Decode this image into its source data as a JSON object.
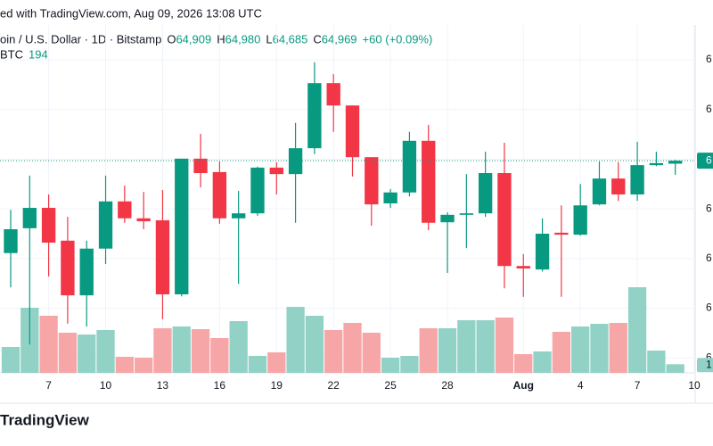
{
  "header": "ed with TradingView.com, Aug 09, 2026 13:08 UTC",
  "symbol_line": "oin / U.S. Dollar · 1D · Bitstamp",
  "ohlc_legend": [
    {
      "label": "O",
      "text": "64,909"
    },
    {
      "label": "H",
      "text": "64,980"
    },
    {
      "label": "L",
      "text": "64,685"
    },
    {
      "label": "C",
      "text": "64,969"
    }
  ],
  "change": "+60 (+0.09%)",
  "volume_legend": {
    "label": "BTC",
    "text": "194"
  },
  "brand": "TradingView",
  "chart_data": {
    "type": "candlestick",
    "categories": [
      null,
      null,
      "7",
      null,
      null,
      "10",
      null,
      null,
      "13",
      null,
      null,
      "16",
      null,
      null,
      "19",
      null,
      null,
      "22",
      null,
      null,
      "25",
      null,
      null,
      "28",
      null,
      null,
      null,
      "Aug",
      null,
      null,
      "4",
      null,
      null,
      "7",
      null,
      null,
      "10"
    ],
    "open": [
      63110,
      63610,
      64020,
      63360,
      62260,
      63200,
      64150,
      63810,
      63770,
      62280,
      65010,
      64740,
      63810,
      63910,
      64830,
      64700,
      65220,
      66530,
      66080,
      65040,
      64110,
      64330,
      65370,
      63730,
      63880,
      63910,
      64720,
      62850,
      62780,
      63520,
      63480,
      64090,
      64610,
      64290,
      64880,
      64909,
      null
    ],
    "high": [
      63980,
      64670,
      64290,
      63840,
      63360,
      64670,
      64470,
      64340,
      64380,
      65010,
      65510,
      64950,
      64360,
      64850,
      64940,
      65730,
      66950,
      66710,
      66080,
      65040,
      64400,
      65550,
      65690,
      63930,
      64700,
      65150,
      65330,
      63090,
      63810,
      64070,
      64500,
      64950,
      64940,
      65350,
      65150,
      64980,
      null
    ],
    "low": [
      62420,
      61270,
      62640,
      61690,
      61630,
      62890,
      63720,
      63590,
      61780,
      62240,
      64430,
      63700,
      62490,
      63860,
      64290,
      63720,
      65100,
      65550,
      64650,
      63660,
      64020,
      64250,
      63570,
      62710,
      63210,
      63840,
      62400,
      62230,
      62740,
      62230,
      63460,
      64070,
      64160,
      64160,
      64860,
      64685,
      null
    ],
    "close": [
      63590,
      64020,
      63320,
      62260,
      63200,
      64150,
      63810,
      63750,
      62280,
      65010,
      64720,
      63810,
      63910,
      64830,
      64700,
      65220,
      66530,
      66080,
      65040,
      64090,
      64330,
      65370,
      63720,
      63880,
      63910,
      64720,
      62850,
      62800,
      63500,
      63480,
      64070,
      64610,
      64290,
      64880,
      64920,
      64969,
      null
    ],
    "volume": [
      580,
      1460,
      1280,
      900,
      860,
      960,
      360,
      340,
      1000,
      1040,
      980,
      780,
      1160,
      380,
      460,
      1480,
      1280,
      960,
      1120,
      900,
      340,
      380,
      1000,
      1000,
      1180,
      1180,
      1240,
      420,
      480,
      920,
      1040,
      1100,
      1120,
      1920,
      500,
      194,
      null
    ],
    "ylim": [
      60700,
      67700
    ],
    "yticks": [
      {
        "value": 67000,
        "label": "6"
      },
      {
        "value": 66000,
        "label": "6"
      },
      {
        "value": 65000,
        "label": "6"
      },
      {
        "value": 64000,
        "label": "6"
      },
      {
        "value": 63000,
        "label": "6"
      },
      {
        "value": 62000,
        "label": "6"
      },
      {
        "value": 61000,
        "label": "6"
      }
    ],
    "volume_lim": [
      0,
      4000
    ],
    "last_price_tag": "6",
    "last_volume_tag": "1",
    "up_color": "#089981",
    "down_color": "#f23645",
    "up_volume_color": "#92d2c6",
    "down_volume_color": "#f7a6a8",
    "grid": true
  }
}
